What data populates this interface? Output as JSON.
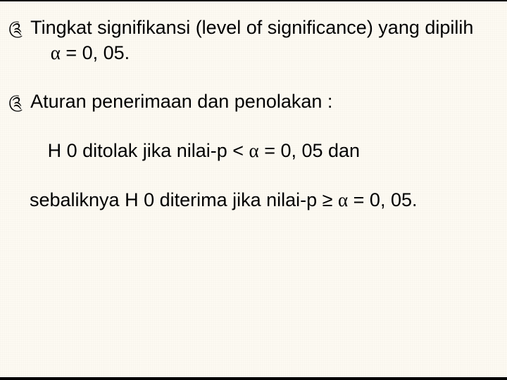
{
  "background_color": "#fdfaf2",
  "text_color": "#000000",
  "font_family": "Arial",
  "font_size_pt": 24,
  "bullet_glyph": "༊",
  "alpha_glyph": "α",
  "geq_glyph": "≥",
  "paragraphs": [
    {
      "bullet": true,
      "indent": false,
      "lines": [
        "Tingkat signifikansi (level of significance) yang dipilih {alpha} = 0, 05."
      ]
    },
    {
      "bullet": true,
      "indent": false,
      "lines": [
        "Aturan penerimaan dan penolakan :"
      ]
    },
    {
      "bullet": false,
      "indent": true,
      "lines": [
        "H 0 ditolak jika nilai-p < {alpha} = 0, 05 dan"
      ]
    },
    {
      "bullet": false,
      "indent": false,
      "lines": [
        "sebaliknya H 0 diterima jika nilai-p {geq}  {alpha} = 0, 05."
      ]
    }
  ]
}
